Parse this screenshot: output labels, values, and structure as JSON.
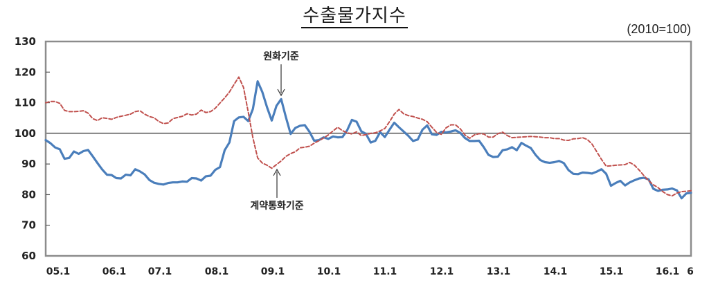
{
  "title": "수출물가지수",
  "unit_note": "(2010=100)",
  "chart_data": {
    "type": "line",
    "title": "수출물가지수",
    "subtitle": "(2010=100)",
    "xlabel": "",
    "ylabel": "",
    "ylim": [
      60,
      130
    ],
    "yticks": [
      60,
      70,
      80,
      90,
      100,
      110,
      120,
      130
    ],
    "x_tick_labels": [
      "05.1",
      "06.1",
      "07.1",
      "08.1",
      "09.1",
      "10.1",
      "11.1",
      "12.1",
      "13.1",
      "14.1",
      "15.1",
      "16.1",
      "6"
    ],
    "x_start": "2005.01",
    "x_end": "2016.06",
    "grid": false,
    "reference_line": 100,
    "legend": "none (inline annotations)",
    "annotations": [
      {
        "text": "원화기준",
        "target_series": "원화기준",
        "arrow": "down",
        "at": "2009.03"
      },
      {
        "text": "계약통화기준",
        "target_series": "계약통화기준",
        "arrow": "up",
        "at": "2009.03"
      }
    ],
    "series": [
      {
        "name": "원화기준",
        "style": "solid",
        "color": "#4a7ebb",
        "values": [
          97.8,
          96.8,
          95.4,
          94.8,
          91.7,
          92.0,
          94.1,
          93.3,
          94.2,
          94.6,
          92.5,
          90.3,
          88.2,
          86.5,
          86.4,
          85.4,
          85.3,
          86.5,
          86.3,
          88.3,
          87.6,
          86.6,
          84.8,
          83.9,
          83.5,
          83.3,
          83.8,
          84.0,
          84.0,
          84.3,
          84.2,
          85.4,
          85.3,
          84.6,
          86.0,
          86.2,
          88.1,
          89.0,
          94.5,
          97.0,
          104.0,
          105.2,
          105.4,
          104.0,
          108.0,
          117.0,
          113.5,
          108.5,
          104.2,
          109.0,
          111.2,
          105.3,
          99.8,
          101.8,
          102.5,
          102.7,
          100.5,
          97.6,
          97.8,
          98.7,
          98.2,
          99.0,
          98.7,
          98.8,
          101.0,
          104.4,
          103.8,
          100.7,
          99.8,
          97.0,
          97.6,
          100.4,
          98.8,
          101.2,
          103.5,
          102.0,
          100.6,
          99.2,
          97.5,
          98.0,
          101.2,
          102.6,
          99.7,
          99.5,
          100.5,
          100.3,
          100.6,
          101.0,
          100.2,
          98.5,
          97.5,
          97.5,
          97.6,
          95.5,
          93.0,
          92.3,
          92.4,
          94.5,
          94.8,
          95.5,
          94.5,
          96.9,
          96.0,
          95.2,
          93.0,
          91.3,
          90.6,
          90.4,
          90.6,
          91.0,
          90.3,
          88.0,
          86.8,
          86.7,
          87.2,
          87.1,
          86.9,
          87.5,
          88.3,
          86.8,
          82.9,
          83.8,
          84.5,
          83.0,
          84.0,
          84.7,
          85.3,
          85.5,
          85.0,
          81.9,
          81.2,
          81.6,
          81.7,
          82.0,
          81.4,
          78.8,
          80.4,
          80.6
        ]
      },
      {
        "name": "계약통화기준",
        "style": "dashed",
        "color": "#c0504d",
        "values": [
          110.0,
          110.4,
          110.4,
          109.8,
          107.5,
          107.1,
          107.1,
          107.2,
          107.4,
          106.6,
          104.8,
          104.2,
          105.1,
          104.9,
          104.6,
          105.2,
          105.6,
          105.9,
          106.3,
          107.1,
          107.4,
          106.3,
          105.5,
          105.1,
          103.9,
          103.2,
          103.4,
          104.8,
          105.2,
          105.6,
          106.4,
          106.0,
          106.3,
          107.6,
          106.8,
          107.1,
          108.2,
          109.9,
          111.6,
          113.5,
          116.0,
          118.4,
          115.0,
          107.0,
          98.5,
          92.0,
          90.3,
          89.6,
          88.6,
          89.8,
          91.0,
          92.5,
          93.4,
          94.0,
          95.3,
          95.5,
          95.8,
          96.8,
          97.6,
          98.5,
          99.5,
          100.8,
          102.0,
          100.9,
          100.2,
          99.8,
          100.5,
          99.3,
          99.6,
          100.0,
          100.2,
          100.8,
          101.6,
          103.8,
          106.3,
          107.8,
          106.4,
          105.8,
          105.5,
          105.0,
          104.6,
          103.8,
          102.0,
          100.3,
          99.7,
          101.8,
          102.8,
          102.8,
          101.5,
          99.5,
          98.4,
          99.5,
          99.9,
          99.8,
          98.8,
          98.8,
          99.9,
          100.4,
          99.3,
          98.6,
          98.7,
          98.8,
          98.9,
          99.0,
          98.9,
          98.8,
          98.6,
          98.6,
          98.3,
          98.3,
          97.8,
          97.7,
          98.2,
          98.3,
          98.6,
          98.0,
          96.5,
          94.0,
          91.5,
          89.3,
          89.4,
          89.6,
          89.7,
          89.8,
          90.5,
          89.6,
          88.0,
          86.2,
          84.6,
          83.2,
          82.3,
          81.0,
          80.0,
          79.6,
          80.5,
          81.0,
          81.1,
          81.3
        ]
      }
    ]
  }
}
